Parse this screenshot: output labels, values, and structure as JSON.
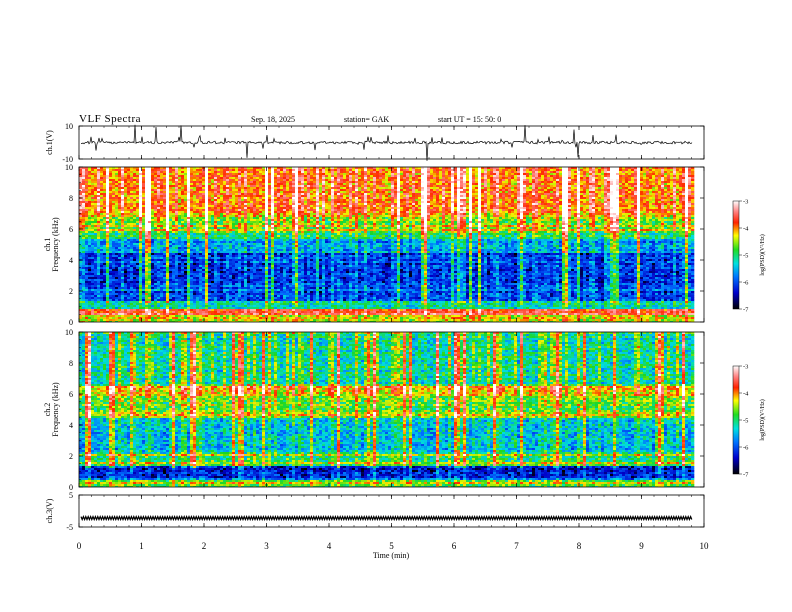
{
  "header": {
    "title": "VLF  Spectra",
    "date": "Sep. 18,  2025",
    "station": "station= GAK",
    "start_ut": "start  UT  =    15: 50: 0"
  },
  "chart_data": [
    {
      "type": "line",
      "panel": "ch1-waveform",
      "ylabel": "ch.1(V)",
      "ylim": [
        -10,
        10
      ],
      "yticks": [
        "10",
        "-10"
      ],
      "xlim": [
        0,
        10
      ],
      "baseline": 0,
      "description_of_data": "time series of voltage near 0 V with frequent spikes"
    },
    {
      "type": "heatmap",
      "panel": "ch1-spectrogram",
      "ylabel": "ch.1\nFrequency (kHz)",
      "ylim": [
        0,
        10
      ],
      "yticks": [
        "0",
        "2",
        "4",
        "6",
        "8",
        "10"
      ],
      "xlim": [
        0,
        10
      ],
      "data_end_min": 9.82,
      "colorbar": {
        "label": "log(PSD)(V²/Hz)",
        "range": [
          -7,
          -3
        ],
        "ticks": [
          "-3",
          "-4",
          "-5",
          "-6",
          "-7"
        ]
      },
      "levels_by_frequency_khz": [
        {
          "f": [
            0,
            0.5
          ],
          "level": -4.6
        },
        {
          "f": [
            0.5,
            0.9
          ],
          "level": -3.8
        },
        {
          "f": [
            0.9,
            1.3
          ],
          "level": -5.4
        },
        {
          "f": [
            1.3,
            4.5
          ],
          "level": -6.3
        },
        {
          "f": [
            4.5,
            5.3
          ],
          "level": -5.8
        },
        {
          "f": [
            5.3,
            5.7
          ],
          "level": -5.3
        },
        {
          "f": [
            5.7,
            7.0
          ],
          "level": -4.9
        },
        {
          "f": [
            7.0,
            10.0
          ],
          "level": -4.2
        }
      ]
    },
    {
      "type": "heatmap",
      "panel": "ch2-spectrogram",
      "ylabel": "ch.2\nFrequency (kHz)",
      "ylim": [
        0,
        10
      ],
      "yticks": [
        "0",
        "2",
        "4",
        "6",
        "8",
        "10"
      ],
      "xlim": [
        0,
        10
      ],
      "data_end_min": 9.82,
      "colorbar": {
        "label": "log(PSD)(V²/Hz)",
        "range": [
          -7,
          -3
        ],
        "ticks": [
          "-3",
          "-4",
          "-5",
          "-6",
          "-7"
        ]
      },
      "levels_by_frequency_khz": [
        {
          "f": [
            0,
            0.4
          ],
          "level": -5.0
        },
        {
          "f": [
            0.4,
            1.4
          ],
          "level": -6.5
        },
        {
          "f": [
            1.4,
            2.2
          ],
          "level": -5.2
        },
        {
          "f": [
            2.2,
            4.5
          ],
          "level": -5.7
        },
        {
          "f": [
            4.5,
            5.9
          ],
          "level": -5.0
        },
        {
          "f": [
            5.9,
            6.5
          ],
          "level": -4.4
        },
        {
          "f": [
            6.5,
            10.0
          ],
          "level": -5.4
        }
      ]
    },
    {
      "type": "line",
      "panel": "ch3-waveform",
      "ylabel": "ch.3(V)",
      "ylim": [
        -5,
        5
      ],
      "yticks": [
        "5",
        "-5"
      ],
      "xlim": [
        0,
        10
      ],
      "baseline": -2.2,
      "description_of_data": "dense oscillating signal around -2.2 V"
    }
  ],
  "xaxis": {
    "label": "Time  (min)",
    "ticks": [
      "0",
      "1",
      "2",
      "3",
      "4",
      "5",
      "6",
      "7",
      "8",
      "9",
      "10"
    ],
    "range": [
      0,
      10
    ]
  },
  "colors": {
    "frame": "#000000",
    "background": "#ffffff"
  }
}
